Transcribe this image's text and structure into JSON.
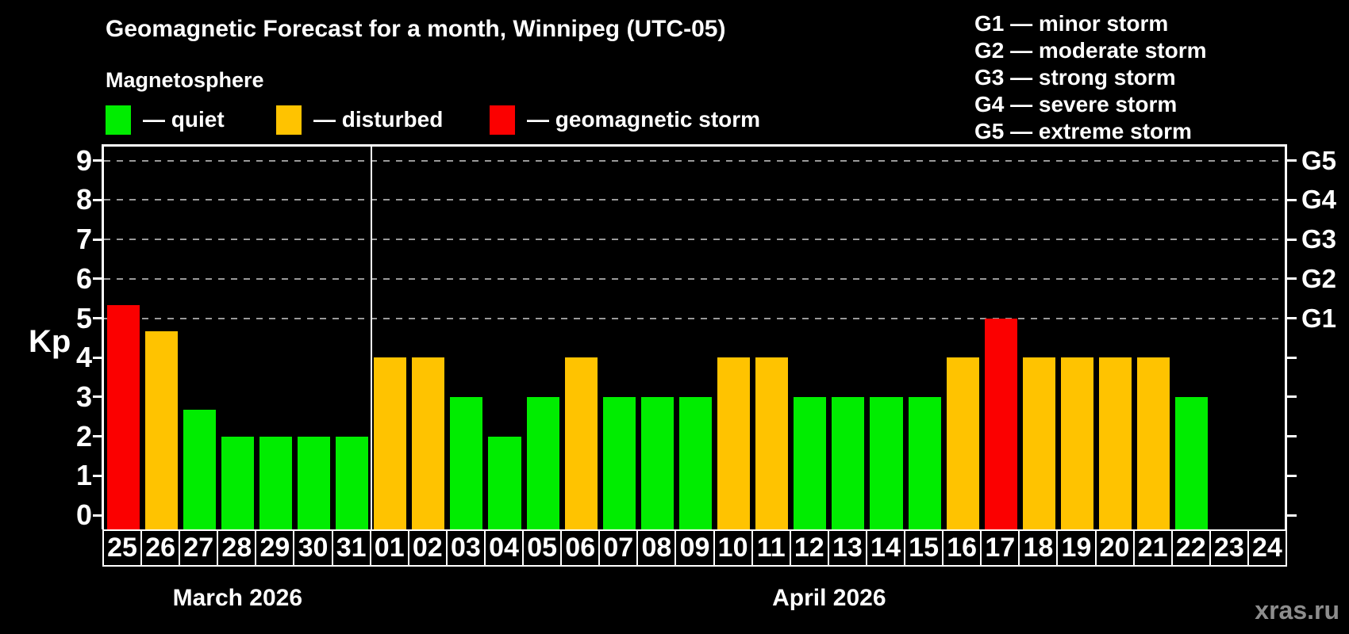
{
  "chart_data": {
    "type": "bar",
    "title": "Geomagnetic Forecast for a month, Winnipeg (UTC-05)",
    "subtitle": "Magnetosphere",
    "ylabel": "Kp",
    "ylim": [
      0,
      9
    ],
    "yticks": [
      0,
      1,
      2,
      3,
      4,
      5,
      6,
      7,
      8,
      9
    ],
    "gridlines_at": [
      5,
      6,
      7,
      8,
      9
    ],
    "grid_style": "dashed",
    "legend_position": "top",
    "right_axis_labels": [
      {
        "kp": 5,
        "label": "G1"
      },
      {
        "kp": 6,
        "label": "G2"
      },
      {
        "kp": 7,
        "label": "G3"
      },
      {
        "kp": 8,
        "label": "G4"
      },
      {
        "kp": 9,
        "label": "G5"
      }
    ],
    "months": [
      {
        "label": "March 2026",
        "days": [
          {
            "day": "25",
            "kp": 5.33,
            "status": "storm"
          },
          {
            "day": "26",
            "kp": 4.67,
            "status": "disturbed"
          },
          {
            "day": "27",
            "kp": 2.67,
            "status": "quiet"
          },
          {
            "day": "28",
            "kp": 2,
            "status": "quiet"
          },
          {
            "day": "29",
            "kp": 2,
            "status": "quiet"
          },
          {
            "day": "30",
            "kp": 2,
            "status": "quiet"
          },
          {
            "day": "31",
            "kp": 2,
            "status": "quiet"
          }
        ]
      },
      {
        "label": "April 2026",
        "days": [
          {
            "day": "01",
            "kp": 4,
            "status": "disturbed"
          },
          {
            "day": "02",
            "kp": 4,
            "status": "disturbed"
          },
          {
            "day": "03",
            "kp": 3,
            "status": "quiet"
          },
          {
            "day": "04",
            "kp": 2,
            "status": "quiet"
          },
          {
            "day": "05",
            "kp": 3,
            "status": "quiet"
          },
          {
            "day": "06",
            "kp": 4,
            "status": "disturbed"
          },
          {
            "day": "07",
            "kp": 3,
            "status": "quiet"
          },
          {
            "day": "08",
            "kp": 3,
            "status": "quiet"
          },
          {
            "day": "09",
            "kp": 3,
            "status": "quiet"
          },
          {
            "day": "10",
            "kp": 4,
            "status": "disturbed"
          },
          {
            "day": "11",
            "kp": 4,
            "status": "disturbed"
          },
          {
            "day": "12",
            "kp": 3,
            "status": "quiet"
          },
          {
            "day": "13",
            "kp": 3,
            "status": "quiet"
          },
          {
            "day": "14",
            "kp": 3,
            "status": "quiet"
          },
          {
            "day": "15",
            "kp": 3,
            "status": "quiet"
          },
          {
            "day": "16",
            "kp": 4,
            "status": "disturbed"
          },
          {
            "day": "17",
            "kp": 5,
            "status": "storm"
          },
          {
            "day": "18",
            "kp": 4,
            "status": "disturbed"
          },
          {
            "day": "19",
            "kp": 4,
            "status": "disturbed"
          },
          {
            "day": "20",
            "kp": 4,
            "status": "disturbed"
          },
          {
            "day": "21",
            "kp": 4,
            "status": "disturbed"
          },
          {
            "day": "22",
            "kp": 3,
            "status": "quiet"
          },
          {
            "day": "23",
            "kp": 0,
            "status": "none"
          },
          {
            "day": "24",
            "kp": 0,
            "status": "none"
          }
        ]
      }
    ]
  },
  "legend": [
    {
      "label": "— quiet",
      "status": "quiet"
    },
    {
      "label": "— disturbed",
      "status": "disturbed"
    },
    {
      "label": "— geomagnetic storm",
      "status": "storm"
    }
  ],
  "storm_scale_legend": [
    "G1 — minor storm",
    "G2 — moderate storm",
    "G3 — strong storm",
    "G4 — severe storm",
    "G5 — extreme storm"
  ],
  "status_colors": {
    "quiet": "#00ED00",
    "disturbed": "#FFC300",
    "storm": "#FB0000"
  },
  "colors": {
    "grid": "#9A9A9A",
    "axis": "#FFFFFF",
    "background": "#000000",
    "watermark": "#8D8D8D"
  },
  "watermark": "xras.ru"
}
